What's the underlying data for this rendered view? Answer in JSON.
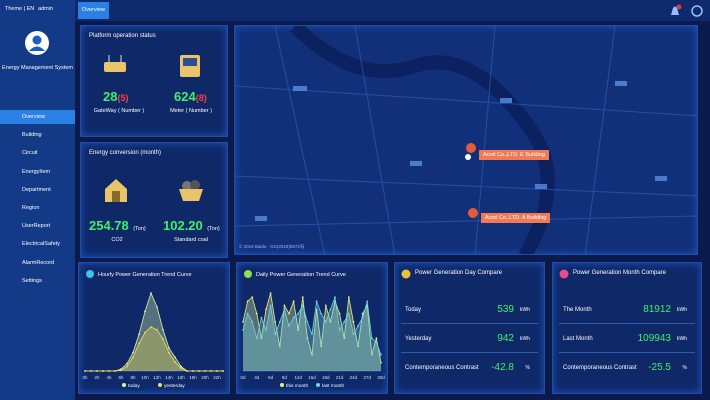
{
  "sidebar": {
    "theme": "Theme | EN",
    "user": "admin",
    "system_name": "Energy Management System",
    "menu": [
      "Overview",
      "Building",
      "Circuit",
      "EnergyItem",
      "Department",
      "Region",
      "UserReport",
      "ElectricalSafety",
      "AlarmRecord",
      "Settings"
    ]
  },
  "header": {
    "tab": "Overview"
  },
  "platform_status": {
    "title": "Platform operation status",
    "gateway": {
      "count": "28",
      "fault": "(5)",
      "label": "GateWay ( Number )"
    },
    "meter": {
      "count": "624",
      "fault": "(8)",
      "label": "Meter ( Number )"
    }
  },
  "energy_conversion": {
    "title": "Energy conversion  (month)",
    "co2": {
      "value": "254.78",
      "unit": "(Ton)",
      "label": "CO2"
    },
    "coal": {
      "value": "102.20",
      "unit": "(Ton)",
      "label": "Standard coal"
    }
  },
  "map": {
    "markers": [
      "Acrel Co.,LTD. E Building",
      "Acrel Co.,LTD. A Building"
    ],
    "copyright": "© 2019 Baidu - GS(2018)5572号"
  },
  "day_compare": {
    "title": "Power Generation Day Compare",
    "rows": [
      {
        "label": "Today",
        "value": "539",
        "unit": "kWh"
      },
      {
        "label": "Yesterday",
        "value": "942",
        "unit": "kWh"
      },
      {
        "label": "Contemporaneous Contrast",
        "value": "-42.8",
        "unit": "%"
      }
    ]
  },
  "month_compare": {
    "title": "Power Generation Month Compare",
    "rows": [
      {
        "label": "The Month",
        "value": "81912",
        "unit": "kWh"
      },
      {
        "label": "Last Month",
        "value": "109943",
        "unit": "kWh"
      },
      {
        "label": "Contemporaneous Contrast",
        "value": "-25.5",
        "unit": "%"
      }
    ]
  },
  "chart_data": [
    {
      "type": "area",
      "title": "Hourly Power Generation Trend Curve",
      "categories": [
        "0h",
        null,
        "2h",
        null,
        "4h",
        null,
        "6h",
        null,
        "8h",
        null,
        "10h",
        null,
        "12h",
        null,
        "14h",
        null,
        "16h",
        null,
        "18h",
        null,
        "20h",
        null,
        "22h",
        null
      ],
      "series": [
        {
          "name": "today",
          "color": "#dff5a8",
          "values": [
            0,
            0,
            0,
            0,
            0,
            0,
            2,
            8,
            20,
            40,
            65,
            85,
            70,
            45,
            25,
            15,
            5,
            0,
            0,
            0,
            0,
            0,
            0,
            0
          ]
        },
        {
          "name": "yesterday",
          "color": "#f2de4e",
          "values": [
            0,
            0,
            0,
            0,
            0,
            0,
            1,
            5,
            15,
            30,
            42,
            48,
            45,
            35,
            20,
            10,
            3,
            0,
            0,
            0,
            0,
            0,
            0,
            0
          ]
        }
      ]
    },
    {
      "type": "area",
      "title": "Daily Power Generation Trend Curve",
      "categories": [
        "0d",
        null,
        null,
        "3d",
        null,
        null,
        "6d",
        null,
        null,
        "9d",
        null,
        null,
        "12d",
        null,
        null,
        "15d",
        null,
        null,
        "18d",
        null,
        null,
        "21d",
        null,
        null,
        "24d",
        null,
        null,
        "27d",
        null,
        null,
        "30d"
      ],
      "series": [
        {
          "name": "this month",
          "color": "#e6ef86",
          "values": [
            60,
            85,
            90,
            70,
            40,
            75,
            95,
            60,
            30,
            80,
            70,
            85,
            50,
            90,
            40,
            20,
            75,
            30,
            80,
            60,
            85,
            70,
            40,
            90,
            60,
            30,
            70,
            80,
            20,
            40,
            10
          ]
        },
        {
          "name": "last month",
          "color": "#6fd3e6",
          "values": [
            50,
            70,
            60,
            40,
            65,
            50,
            80,
            45,
            60,
            75,
            55,
            65,
            70,
            80,
            60,
            45,
            85,
            70,
            60,
            75,
            90,
            50,
            60,
            70,
            45,
            55,
            65,
            85,
            40,
            35,
            20
          ]
        }
      ]
    }
  ]
}
